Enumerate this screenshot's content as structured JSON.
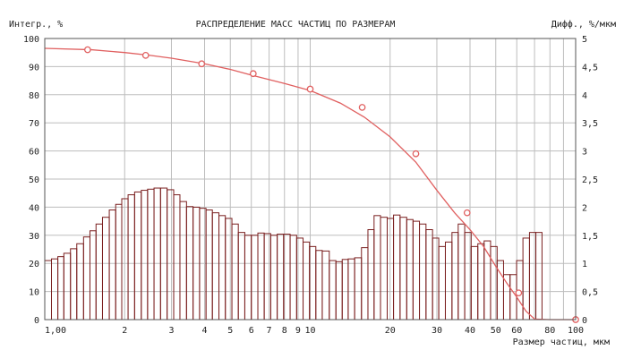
{
  "chart_data": {
    "type": "bar",
    "title": "РАСПРЕДЕЛЕНИЕ МАСС ЧАСТИЦ ПО РАЗМЕРАМ",
    "left_axis_label": "Интегр., %",
    "right_axis_label": "Дифф., %/мкм",
    "xlabel": "Размер частиц, мкм",
    "x_scale": "log",
    "xlim": [
      1,
      100
    ],
    "ylim_left": [
      0,
      100
    ],
    "ylim_right": [
      0,
      5
    ],
    "x_tick_labels": [
      {
        "v": 1,
        "t": "1,00"
      },
      {
        "v": 2,
        "t": "2"
      },
      {
        "v": 3,
        "t": "3"
      },
      {
        "v": 4,
        "t": "4"
      },
      {
        "v": 5,
        "t": "5"
      },
      {
        "v": 6,
        "t": "6"
      },
      {
        "v": 7,
        "t": "7"
      },
      {
        "v": 8,
        "t": "8"
      },
      {
        "v": 9,
        "t": "9"
      },
      {
        "v": 10,
        "t": "10"
      },
      {
        "v": 20,
        "t": "20"
      },
      {
        "v": 30,
        "t": "30"
      },
      {
        "v": 40,
        "t": "40"
      },
      {
        "v": 50,
        "t": "50"
      },
      {
        "v": 60,
        "t": "60"
      },
      {
        "v": 80,
        "t": "80"
      },
      {
        "v": 100,
        "t": "100"
      }
    ],
    "y_left_ticks": [
      "0",
      "10",
      "20",
      "30",
      "40",
      "50",
      "60",
      "70",
      "80",
      "90",
      "100"
    ],
    "y_right_ticks": [
      "0",
      "0,5",
      "1",
      "1,5",
      "2",
      "2,5",
      "3",
      "3,5",
      "4",
      "4,5",
      "5"
    ],
    "grid": true,
    "colors": {
      "line": "#e06060",
      "bars": "#7a1f1f",
      "grid": "#bdbdbd"
    },
    "histogram": {
      "name": "Дифф., %/мкм",
      "x": [
        1.0,
        1.06,
        1.12,
        1.18,
        1.25,
        1.32,
        1.4,
        1.48,
        1.56,
        1.65,
        1.75,
        1.85,
        1.95,
        2.06,
        2.18,
        2.31,
        2.44,
        2.58,
        2.73,
        2.89,
        3.06,
        3.23,
        3.42,
        3.62,
        3.83,
        4.05,
        4.28,
        4.53,
        4.79,
        5.07,
        5.36,
        5.67,
        6.0,
        6.35,
        6.71,
        7.1,
        7.51,
        7.94,
        8.4,
        8.89,
        9.4,
        9.94,
        10.5,
        11.1,
        11.8,
        12.5,
        13.2,
        13.9,
        14.7,
        15.6,
        16.5,
        17.4,
        18.4,
        19.5,
        20.6,
        21.8,
        23.1,
        24.4,
        25.8,
        27.3,
        28.9,
        30.5,
        32.3,
        34.2,
        36.1,
        38.2,
        40.4,
        42.8,
        45.2,
        47.8,
        50.6,
        53.5,
        56.6,
        59.9,
        63.3,
        67.0,
        70.8
      ],
      "values": [
        1.05,
        1.08,
        1.12,
        1.18,
        1.26,
        1.35,
        1.47,
        1.58,
        1.7,
        1.82,
        1.95,
        2.05,
        2.15,
        2.22,
        2.27,
        2.3,
        2.32,
        2.34,
        2.34,
        2.31,
        2.22,
        2.1,
        2.01,
        2.0,
        1.98,
        1.95,
        1.9,
        1.85,
        1.8,
        1.7,
        1.55,
        1.5,
        1.5,
        1.54,
        1.53,
        1.5,
        1.52,
        1.52,
        1.5,
        1.45,
        1.38,
        1.3,
        1.23,
        1.22,
        1.05,
        1.03,
        1.07,
        1.08,
        1.1,
        1.28,
        1.6,
        1.85,
        1.82,
        1.8,
        1.86,
        1.82,
        1.78,
        1.75,
        1.7,
        1.6,
        1.45,
        1.3,
        1.38,
        1.55,
        1.7,
        1.55,
        1.3,
        1.35,
        1.4,
        1.3,
        1.05,
        0.8,
        0.8,
        1.05,
        1.45,
        1.55,
        1.55
      ]
    },
    "series": [
      {
        "name": "Интегр., %",
        "x": [
          1.0,
          1.5,
          2.0,
          2.5,
          3.0,
          4.0,
          5.0,
          6.0,
          8.0,
          10.0,
          13.0,
          16.0,
          20.0,
          25.0,
          30.0,
          35.0,
          40.0,
          45.0,
          50.0,
          55.0,
          60.0,
          65.0,
          70.0,
          80.0,
          100.0
        ],
        "values": [
          96.5,
          96.0,
          95.0,
          94.0,
          93.0,
          91.0,
          89.0,
          87.0,
          84.0,
          81.5,
          77.0,
          72.0,
          65.0,
          56.0,
          46.0,
          38.0,
          32.0,
          26.0,
          19.0,
          13.0,
          8.0,
          3.0,
          0.2,
          0.0,
          0.0
        ]
      }
    ],
    "markers": {
      "x": [
        1.45,
        2.4,
        3.9,
        6.1,
        10.0,
        15.7,
        25.0,
        39.0,
        61.0,
        100.0
      ],
      "values": [
        96.0,
        94.0,
        91.0,
        87.5,
        82.0,
        75.5,
        59.0,
        38.0,
        9.5,
        0.0
      ]
    }
  }
}
